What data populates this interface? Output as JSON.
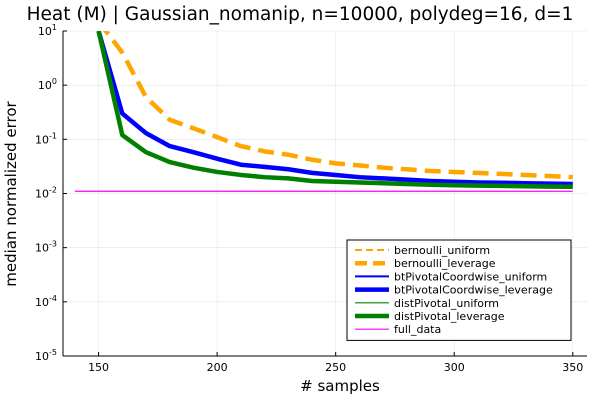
{
  "chart_data": {
    "type": "line",
    "title": "Heat (M) | Gaussian_nomanip, n=10000, polydeg=16, d=1",
    "xlabel": "# samples",
    "ylabel": "median normalized error",
    "xlim": [
      135,
      356
    ],
    "ylim_log10": [
      -5,
      1
    ],
    "yscale": "log",
    "xticks": [
      150,
      200,
      250,
      300,
      350
    ],
    "yticks": [
      {
        "base": "10",
        "exp": "1"
      },
      {
        "base": "10",
        "exp": "0"
      },
      {
        "base": "10",
        "exp": "-1"
      },
      {
        "base": "10",
        "exp": "-2"
      },
      {
        "base": "10",
        "exp": "-3"
      },
      {
        "base": "10",
        "exp": "-4"
      },
      {
        "base": "10",
        "exp": "-5"
      }
    ],
    "grid": true,
    "legend_position": "bottom-right",
    "x": [
      140,
      150,
      160,
      170,
      180,
      190,
      200,
      210,
      220,
      230,
      240,
      250,
      260,
      270,
      280,
      290,
      300,
      310,
      320,
      330,
      340,
      350
    ],
    "series": [
      {
        "name": "bernoulli_uniform",
        "color": "#FFA500",
        "dash": "dashed",
        "width": 2,
        "values": [
          null,
          null,
          null,
          null,
          null,
          null,
          null,
          null,
          null,
          null,
          null,
          null,
          null,
          null,
          null,
          null,
          null,
          null,
          null,
          null,
          null,
          null
        ]
      },
      {
        "name": "bernoulli_leverage",
        "color": "#FFA500",
        "dash": "dashed",
        "width": 4.5,
        "values": [
          null,
          15,
          4,
          0.6,
          0.23,
          0.16,
          0.11,
          0.075,
          0.06,
          0.052,
          0.042,
          0.036,
          0.033,
          0.03,
          0.028,
          0.026,
          0.025,
          0.024,
          0.023,
          0.022,
          0.021,
          0.02
        ]
      },
      {
        "name": "btPivotalCoordwise_uniform",
        "color": "#0000FF",
        "dash": "solid",
        "width": 2,
        "values": [
          null,
          null,
          null,
          null,
          null,
          null,
          null,
          null,
          null,
          null,
          null,
          null,
          null,
          null,
          null,
          null,
          null,
          null,
          null,
          null,
          null,
          null
        ]
      },
      {
        "name": "btPivotalCoordwise_leverage",
        "color": "#0000FF",
        "dash": "solid",
        "width": 4.5,
        "values": [
          null,
          10,
          0.3,
          0.13,
          0.075,
          0.058,
          0.044,
          0.034,
          0.031,
          0.028,
          0.024,
          0.022,
          0.02,
          0.019,
          0.018,
          0.017,
          0.0165,
          0.016,
          0.0158,
          0.0155,
          0.0152,
          0.015
        ]
      },
      {
        "name": "distPivotal_uniform",
        "color": "#008000",
        "dash": "solid",
        "width": 1.2,
        "values": [
          null,
          null,
          null,
          null,
          null,
          null,
          null,
          null,
          null,
          null,
          null,
          null,
          null,
          null,
          null,
          null,
          null,
          null,
          null,
          null,
          null,
          null
        ]
      },
      {
        "name": "distPivotal_leverage",
        "color": "#008000",
        "dash": "solid",
        "width": 4.5,
        "values": [
          null,
          10,
          0.12,
          0.058,
          0.038,
          0.03,
          0.025,
          0.022,
          0.02,
          0.019,
          0.017,
          0.0165,
          0.016,
          0.0155,
          0.015,
          0.0145,
          0.0142,
          0.014,
          0.0138,
          0.0136,
          0.0134,
          0.0133
        ]
      },
      {
        "name": "full_data",
        "color": "#FF00FF",
        "dash": "solid",
        "width": 1.2,
        "values": [
          0.011,
          0.011,
          0.011,
          0.011,
          0.011,
          0.011,
          0.011,
          0.011,
          0.011,
          0.011,
          0.011,
          0.011,
          0.011,
          0.011,
          0.011,
          0.011,
          0.011,
          0.011,
          0.011,
          0.011,
          0.011,
          0.011
        ]
      }
    ]
  }
}
